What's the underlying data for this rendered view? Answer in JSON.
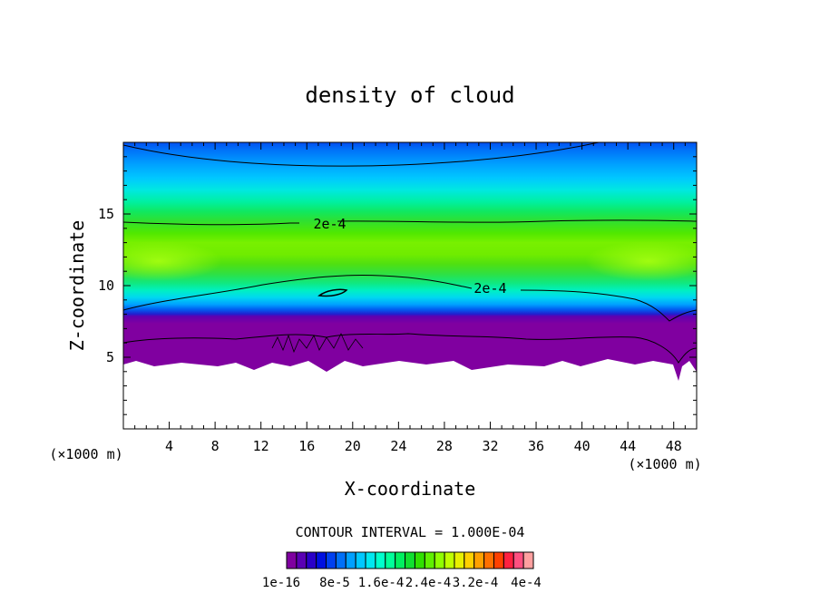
{
  "chart_data": {
    "type": "heatmap",
    "title": "density of cloud",
    "xlabel": "X-coordinate",
    "ylabel": "Z-coordinate",
    "x_unit": "(×1000 m)",
    "y_unit": "(×1000 m)",
    "xlim": [
      0,
      50
    ],
    "ylim": [
      0,
      20
    ],
    "x_ticks": [
      4,
      8,
      12,
      16,
      20,
      24,
      28,
      32,
      36,
      40,
      44,
      48
    ],
    "x_tick_labels": [
      "4",
      "8",
      "12",
      "16",
      "20",
      "24",
      "28",
      "32",
      "36",
      "40",
      "44",
      "48"
    ],
    "y_ticks": [
      5,
      10,
      15
    ],
    "y_tick_labels": [
      "5",
      "10",
      "15"
    ],
    "contour_interval_text": "CONTOUR INTERVAL = 1.000E-04",
    "contour_labels": [
      {
        "text": "2e-4",
        "x": 18,
        "z": 14.3
      },
      {
        "text": "2e-4",
        "x": 32,
        "z": 9.8
      }
    ],
    "colorbar": {
      "colors": [
        "#7f00a0",
        "#5a00b4",
        "#2a00c8",
        "#0010e0",
        "#0040f0",
        "#0070f8",
        "#00a0ff",
        "#00c8ff",
        "#00e8f0",
        "#00ffcc",
        "#00ff99",
        "#00f060",
        "#10e030",
        "#30e000",
        "#60f000",
        "#90ff00",
        "#c0ff00",
        "#e8f000",
        "#ffd000",
        "#ffa000",
        "#ff7000",
        "#ff4000",
        "#ff2040",
        "#ff5080",
        "#ffa0a0"
      ],
      "labels": [
        "1e-16",
        "8e-5",
        "1.6e-4",
        "2.4e-4",
        "3.2e-4",
        "4e-4"
      ]
    }
  }
}
